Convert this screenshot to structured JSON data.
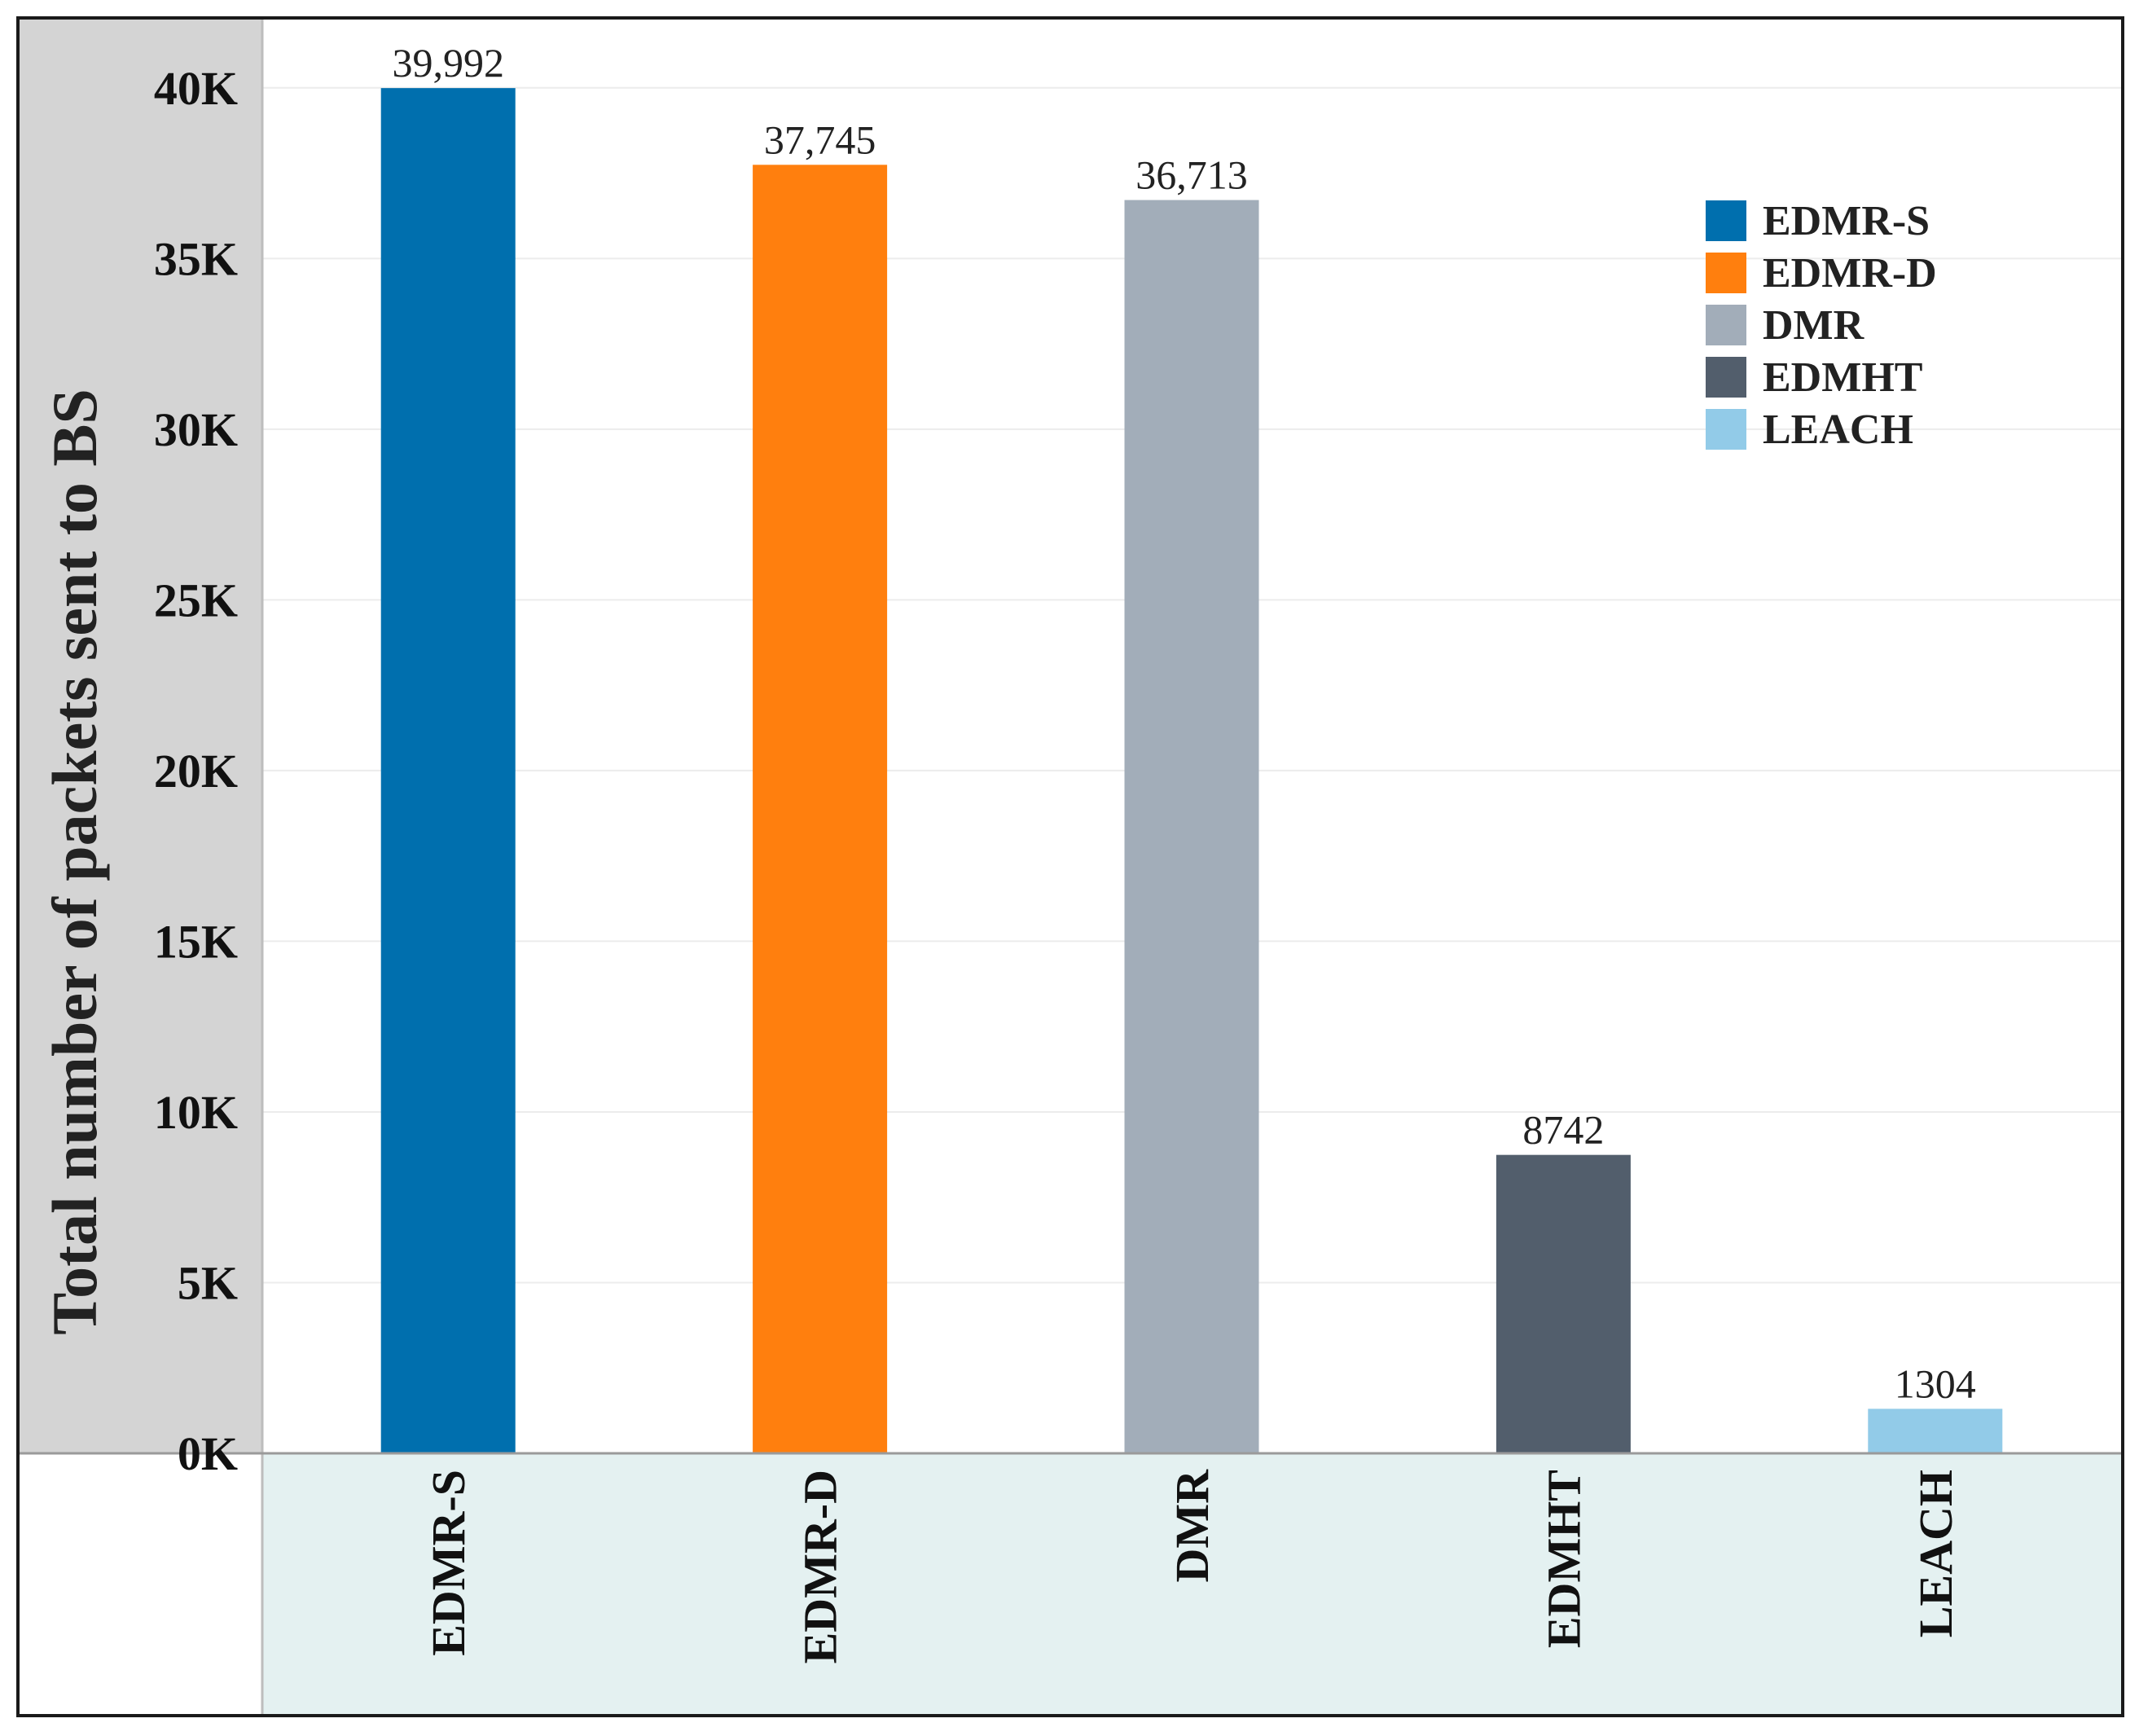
{
  "chart_data": {
    "type": "bar",
    "title": "",
    "xlabel": "",
    "ylabel": "Total number of packets sent to BS",
    "categories": [
      "EDMR-S",
      "EDMR-D",
      "DMR",
      "EDMHT",
      "LEACH"
    ],
    "values": [
      39992,
      37745,
      36713,
      8742,
      1304
    ],
    "value_labels": [
      "39,992",
      "37,745",
      "36,713",
      "8742",
      "1304"
    ],
    "colors": [
      "#006fae",
      "#ff7f0e",
      "#a2adb9",
      "#525e6c",
      "#92cbe8"
    ],
    "ylim": [
      0,
      42000
    ],
    "yticks": [
      0,
      5000,
      10000,
      15000,
      20000,
      25000,
      30000,
      35000,
      40000
    ],
    "ytick_labels": [
      "0K",
      "5K",
      "10K",
      "15K",
      "20K",
      "25K",
      "30K",
      "35K",
      "40K"
    ],
    "grid": true,
    "legend_position": "top-right",
    "legend": [
      "EDMR-S",
      "EDMR-D",
      "DMR",
      "EDMHT",
      "LEACH"
    ]
  }
}
